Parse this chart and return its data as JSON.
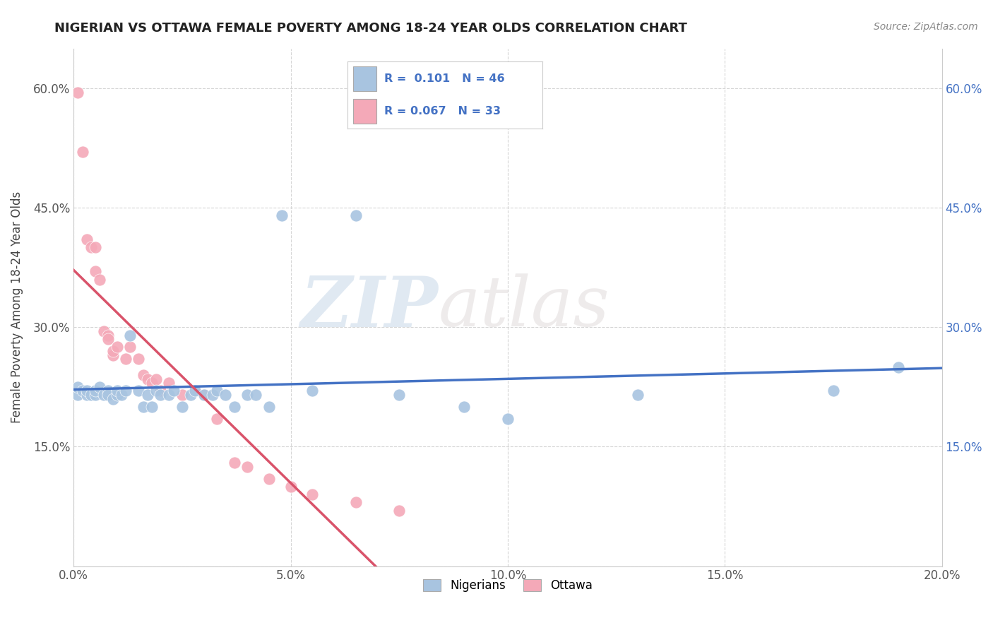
{
  "title": "NIGERIAN VS OTTAWA FEMALE POVERTY AMONG 18-24 YEAR OLDS CORRELATION CHART",
  "source": "Source: ZipAtlas.com",
  "ylabel": "Female Poverty Among 18-24 Year Olds",
  "xlim": [
    0.0,
    0.2
  ],
  "ylim": [
    0.0,
    0.65
  ],
  "xticks": [
    0.0,
    0.05,
    0.1,
    0.15,
    0.2
  ],
  "xtick_labels": [
    "0.0%",
    "5.0%",
    "10.0%",
    "15.0%",
    "20.0%"
  ],
  "yticks": [
    0.0,
    0.15,
    0.3,
    0.45,
    0.6
  ],
  "ytick_labels": [
    "",
    "15.0%",
    "30.0%",
    "45.0%",
    "60.0%"
  ],
  "legend1_label": "Nigerians",
  "legend2_label": "Ottawa",
  "R_nigerian": 0.101,
  "N_nigerian": 46,
  "R_ottawa": 0.067,
  "N_ottawa": 33,
  "nigerian_color": "#a8c4e0",
  "ottawa_color": "#f4a9b8",
  "nigerian_line_color": "#4472c4",
  "ottawa_line_color": "#d9536a",
  "watermark_zip": "ZIP",
  "watermark_atlas": "atlas",
  "nigerian_x": [
    0.001,
    0.001,
    0.002,
    0.003,
    0.003,
    0.004,
    0.005,
    0.005,
    0.006,
    0.007,
    0.008,
    0.008,
    0.009,
    0.01,
    0.01,
    0.011,
    0.012,
    0.013,
    0.015,
    0.016,
    0.017,
    0.018,
    0.019,
    0.02,
    0.022,
    0.023,
    0.025,
    0.027,
    0.028,
    0.03,
    0.032,
    0.033,
    0.035,
    0.037,
    0.04,
    0.042,
    0.045,
    0.048,
    0.055,
    0.065,
    0.075,
    0.09,
    0.1,
    0.13,
    0.175,
    0.19
  ],
  "nigerian_y": [
    0.215,
    0.225,
    0.22,
    0.215,
    0.22,
    0.215,
    0.215,
    0.22,
    0.225,
    0.215,
    0.22,
    0.215,
    0.21,
    0.215,
    0.22,
    0.215,
    0.22,
    0.29,
    0.22,
    0.2,
    0.215,
    0.2,
    0.22,
    0.215,
    0.215,
    0.22,
    0.2,
    0.215,
    0.22,
    0.215,
    0.215,
    0.22,
    0.215,
    0.2,
    0.215,
    0.215,
    0.2,
    0.44,
    0.22,
    0.44,
    0.215,
    0.2,
    0.185,
    0.215,
    0.22,
    0.25
  ],
  "ottawa_x": [
    0.001,
    0.002,
    0.003,
    0.004,
    0.005,
    0.005,
    0.006,
    0.007,
    0.008,
    0.008,
    0.009,
    0.009,
    0.01,
    0.012,
    0.013,
    0.015,
    0.016,
    0.017,
    0.018,
    0.019,
    0.02,
    0.022,
    0.025,
    0.028,
    0.03,
    0.033,
    0.037,
    0.04,
    0.045,
    0.05,
    0.055,
    0.065,
    0.075
  ],
  "ottawa_y": [
    0.595,
    0.52,
    0.41,
    0.4,
    0.4,
    0.37,
    0.36,
    0.295,
    0.29,
    0.285,
    0.265,
    0.27,
    0.275,
    0.26,
    0.275,
    0.26,
    0.24,
    0.235,
    0.23,
    0.235,
    0.22,
    0.23,
    0.215,
    0.22,
    0.215,
    0.185,
    0.13,
    0.125,
    0.11,
    0.1,
    0.09,
    0.08,
    0.07
  ]
}
